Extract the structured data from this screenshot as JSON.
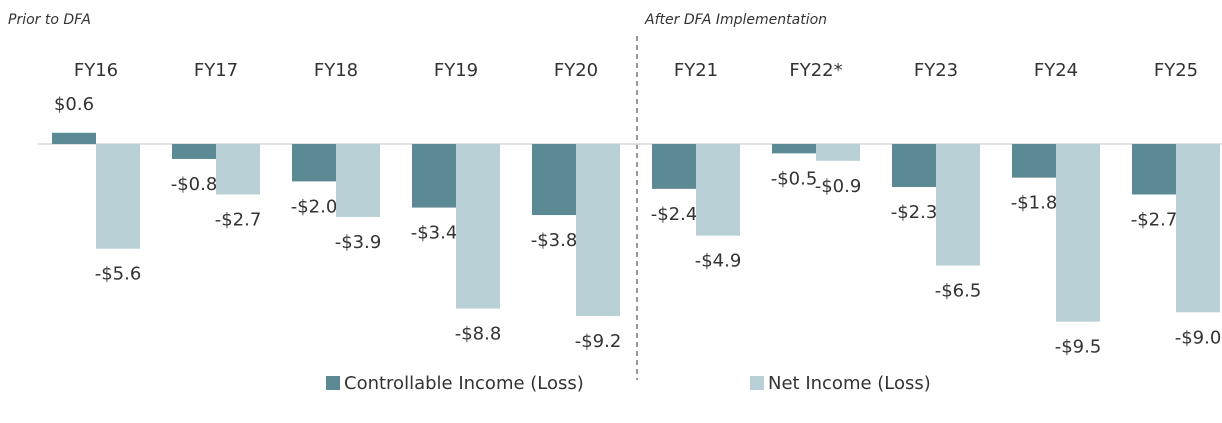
{
  "chart_data": {
    "type": "bar",
    "annotations": [
      "Prior to DFA",
      "After DFA Implementation"
    ],
    "categories": [
      "FY16",
      "FY17",
      "FY18",
      "FY19",
      "FY20",
      "FY21",
      "FY22*",
      "FY23",
      "FY24",
      "FY25"
    ],
    "series": [
      {
        "name": "Controllable Income (Loss)",
        "color": "#5b8a94",
        "values": [
          0.6,
          -0.8,
          -2.0,
          -3.4,
          -3.8,
          -2.4,
          -0.5,
          -2.3,
          -1.8,
          -2.7
        ],
        "value_labels": [
          "$0.6",
          "-$0.8",
          "-$2.0",
          "-$3.4",
          "-$3.8",
          "-$2.4",
          "-$0.5",
          "-$2.3",
          "-$1.8",
          "-$2.7"
        ]
      },
      {
        "name": "Net Income (Loss)",
        "color": "#b9d0d6",
        "values": [
          -5.6,
          -2.7,
          -3.9,
          -8.8,
          -9.2,
          -4.9,
          -0.9,
          -6.5,
          -9.5,
          -9.0
        ],
        "value_labels": [
          "-$5.6",
          "-$2.7",
          "-$3.9",
          "-$8.8",
          "-$9.2",
          "-$4.9",
          "-$0.9",
          "-$6.5",
          "-$9.5",
          "-$9.0"
        ]
      }
    ]
  }
}
